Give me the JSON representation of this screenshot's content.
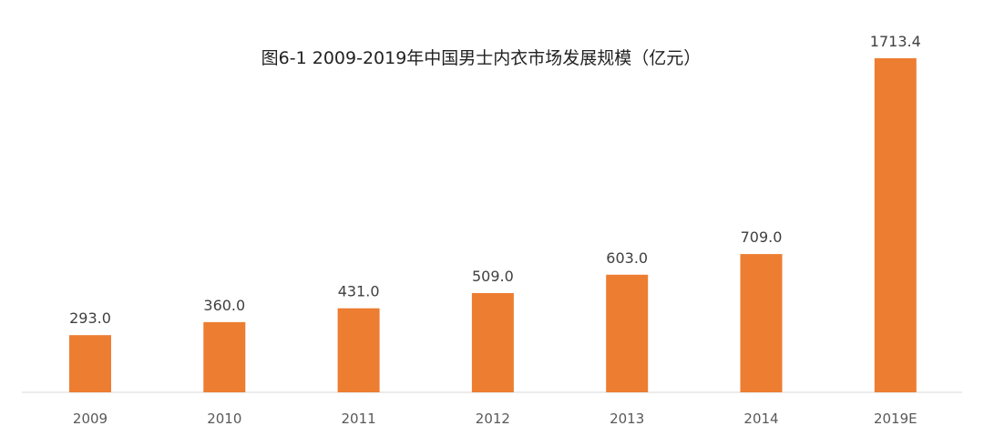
{
  "chart_data": {
    "type": "bar",
    "title": "图6-1 2009-2019年中国男士内衣市场发展规模（亿元）",
    "categories": [
      "2009",
      "2010",
      "2011",
      "2012",
      "2013",
      "2014",
      "2019E"
    ],
    "values": [
      293.0,
      360.0,
      431.0,
      509.0,
      603.0,
      709.0,
      1713.4
    ],
    "value_labels": [
      "293.0",
      "360.0",
      "431.0",
      "509.0",
      "603.0",
      "709.0",
      "1713.4"
    ],
    "xlabel": "",
    "ylabel": "",
    "ylim": [
      0,
      1713.4
    ],
    "bar_color": "#ED7D31",
    "axis_color": "#D9D9D9",
    "grid": false,
    "legend": "none"
  }
}
